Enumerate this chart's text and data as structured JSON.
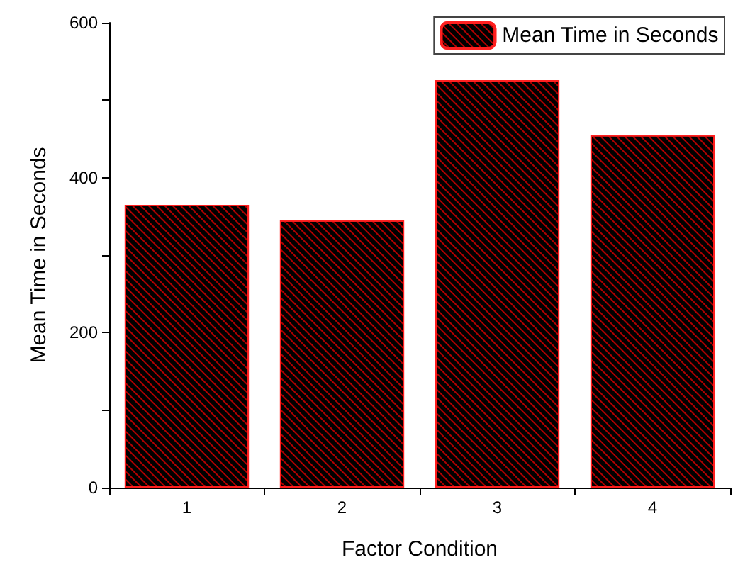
{
  "chart_data": {
    "type": "bar",
    "xlabel": "Factor Condition",
    "ylabel": "Mean Time in Seconds",
    "categories": [
      "1",
      "2",
      "3",
      "4"
    ],
    "series": [
      {
        "name": "Mean Time in Seconds",
        "color": "#000000",
        "values": [
          365,
          345,
          526,
          455
        ]
      }
    ],
    "ylim": [
      0,
      600
    ],
    "yticks": [
      0,
      {
        "value": 100,
        "label": null
      },
      200,
      {
        "value": 300,
        "label": null
      },
      400,
      {
        "value": 500,
        "label": null
      },
      600
    ],
    "grid": false,
    "legend": "top right"
  }
}
